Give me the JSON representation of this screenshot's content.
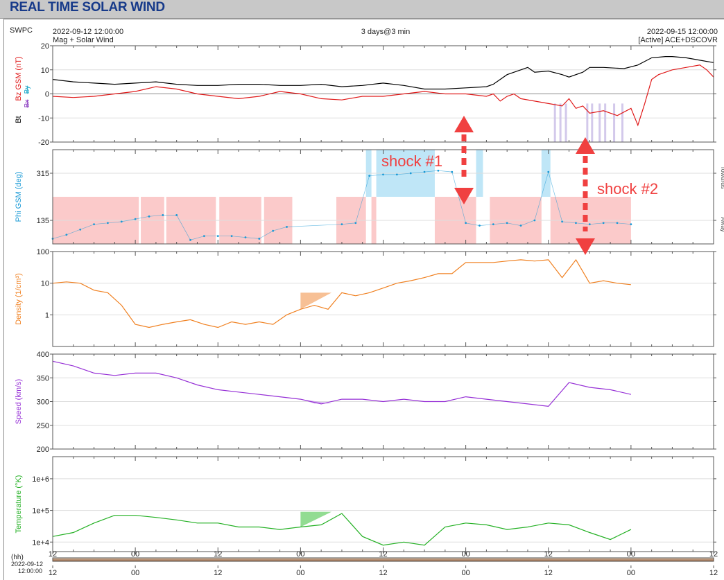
{
  "page": {
    "title": "REAL TIME SOLAR WIND"
  },
  "header": {
    "agency": "SWPC",
    "start_time": "2022-09-12 12:00:00",
    "subtitle": "Mag + Solar Wind",
    "range": "3 days@3 min",
    "end_time": "2022-09-15 12:00:00",
    "source": "[Active] ACE+DSCOVR"
  },
  "annotations": {
    "shock1": "shock #1",
    "shock2": "shock #2",
    "arrow_color": "#f04040"
  },
  "colors": {
    "bt": "#000000",
    "bz": "#e01a1a",
    "bx_by_fill": "#c8bce6",
    "phi": "#1a9ad6",
    "phi_toward": "#bfe6f7",
    "phi_away": "#fbcaca",
    "density": "#f08020",
    "speed": "#9630d6",
    "temperature": "#22b022",
    "grid": "#dddddd"
  },
  "chart_data": [
    {
      "type": "line",
      "panel": "mag",
      "ylabel_parts": [
        "Bt",
        "Bz GSM (nT)",
        "Bx",
        "By"
      ],
      "ylim": [
        -20,
        20
      ],
      "yticks": [
        "20",
        "10",
        "0",
        "-10",
        "-20"
      ],
      "grid": true,
      "series": [
        {
          "name": "Bt",
          "color": "#000000",
          "x": [
            0,
            3,
            6,
            9,
            12,
            15,
            18,
            21,
            24,
            27,
            30,
            33,
            36,
            39,
            42,
            45,
            48,
            51,
            54,
            57,
            60,
            63,
            64,
            66,
            68,
            69,
            70,
            72,
            74,
            75,
            77,
            78,
            80,
            83,
            85,
            87,
            89,
            90,
            92,
            94,
            96
          ],
          "y": [
            6,
            5,
            4.5,
            4,
            4.5,
            5,
            4,
            3.5,
            3.5,
            4,
            4,
            3.5,
            3.5,
            4,
            3,
            3.5,
            4.5,
            3.5,
            2,
            2,
            2.5,
            3,
            4,
            8,
            10,
            11,
            9,
            9.5,
            8,
            7,
            9,
            11,
            11,
            10.5,
            12,
            15,
            15.5,
            15.5,
            15,
            14,
            13
          ]
        },
        {
          "name": "Bz GSM",
          "color": "#e01a1a",
          "x": [
            0,
            3,
            6,
            9,
            12,
            15,
            18,
            21,
            24,
            27,
            30,
            33,
            36,
            39,
            42,
            45,
            48,
            51,
            54,
            57,
            60,
            63,
            64,
            65,
            66,
            67,
            68,
            70,
            72,
            74,
            75,
            76,
            77,
            78,
            80,
            82,
            84,
            85,
            86,
            87,
            88,
            90,
            92,
            94,
            95,
            96
          ],
          "y": [
            -1,
            -1.5,
            -1,
            0,
            1,
            3,
            2,
            0,
            -1,
            -2,
            -1,
            1,
            0,
            -2,
            -2.5,
            -1,
            -1,
            0,
            1,
            0,
            0,
            -1,
            0,
            -3,
            -1,
            0,
            -2,
            -3,
            -4,
            -5,
            -2,
            -6,
            -5,
            -8,
            -7,
            -9,
            -6,
            -13,
            -4,
            6,
            8,
            10,
            11,
            12,
            10,
            7
          ]
        }
      ]
    },
    {
      "type": "scatter",
      "panel": "phi",
      "ylabel": "Phi GSM (deg)",
      "ylim": [
        45,
        405
      ],
      "yticks": [
        "315",
        "135"
      ],
      "right_labels": [
        "Towards",
        "Away"
      ],
      "sectors": [
        {
          "from": 0,
          "to": 12.5,
          "kind": "away"
        },
        {
          "from": 12.8,
          "to": 16.2,
          "kind": "away"
        },
        {
          "from": 16.5,
          "to": 23.7,
          "kind": "away"
        },
        {
          "from": 24.2,
          "to": 30.3,
          "kind": "away"
        },
        {
          "from": 30.7,
          "to": 34.8,
          "kind": "away"
        },
        {
          "from": 41.2,
          "to": 45.5,
          "kind": "away"
        },
        {
          "from": 46.3,
          "to": 47.0,
          "kind": "away"
        },
        {
          "from": 45.5,
          "to": 46.3,
          "kind": "toward"
        },
        {
          "from": 47.0,
          "to": 55.5,
          "kind": "toward"
        },
        {
          "from": 55.5,
          "to": 61.5,
          "kind": "away"
        },
        {
          "from": 61.5,
          "to": 62.5,
          "kind": "toward"
        },
        {
          "from": 63.5,
          "to": 71.0,
          "kind": "away"
        },
        {
          "from": 71.0,
          "to": 72.3,
          "kind": "toward"
        },
        {
          "from": 72.3,
          "to": 84.0,
          "kind": "away"
        }
      ],
      "series": [
        {
          "name": "Phi GSM",
          "color": "#1a9ad6",
          "x": [
            0,
            2,
            4,
            6,
            8,
            10,
            12,
            14,
            16,
            18,
            20,
            22,
            24,
            26,
            28,
            30,
            32,
            34,
            42,
            44,
            46,
            48,
            50,
            52,
            54,
            56,
            58,
            60,
            62,
            64,
            66,
            68,
            70,
            72,
            74,
            76,
            78,
            80,
            82,
            84
          ],
          "y": [
            65,
            80,
            100,
            120,
            125,
            130,
            140,
            150,
            155,
            155,
            60,
            75,
            75,
            75,
            70,
            65,
            95,
            110,
            120,
            125,
            305,
            310,
            310,
            315,
            320,
            325,
            320,
            125,
            115,
            120,
            125,
            115,
            135,
            320,
            130,
            125,
            120,
            125,
            125,
            120
          ]
        }
      ]
    },
    {
      "type": "line",
      "panel": "density",
      "ylabel": "Density (1/cm³)",
      "log": true,
      "ylim": [
        0.1,
        100
      ],
      "yticks": [
        "100",
        "10",
        "1"
      ],
      "series": [
        {
          "name": "Density",
          "color": "#f08020",
          "x": [
            0,
            2,
            4,
            6,
            8,
            10,
            12,
            14,
            16,
            18,
            20,
            22,
            24,
            26,
            28,
            30,
            32,
            34,
            36,
            38,
            40,
            42,
            44,
            46,
            48,
            50,
            52,
            54,
            56,
            58,
            60,
            62,
            64,
            66,
            68,
            70,
            72,
            74,
            76,
            78,
            80,
            82,
            84
          ],
          "y": [
            10,
            11,
            10,
            6,
            5,
            2,
            0.5,
            0.4,
            0.5,
            0.6,
            0.7,
            0.5,
            0.4,
            0.6,
            0.5,
            0.6,
            0.5,
            1,
            1.5,
            2,
            1.5,
            5,
            4,
            5,
            7,
            10,
            12,
            15,
            20,
            20,
            45,
            45,
            45,
            50,
            55,
            50,
            55,
            15,
            55,
            10,
            12,
            10,
            9
          ]
        }
      ]
    },
    {
      "type": "line",
      "panel": "speed",
      "ylabel": "Speed (km/s)",
      "ylim": [
        200,
        400
      ],
      "yticks": [
        "400",
        "350",
        "300",
        "250",
        "200"
      ],
      "series": [
        {
          "name": "Speed",
          "color": "#9630d6",
          "x": [
            0,
            3,
            6,
            9,
            12,
            15,
            18,
            21,
            24,
            27,
            30,
            33,
            36,
            39,
            42,
            45,
            48,
            51,
            54,
            57,
            60,
            63,
            66,
            69,
            72,
            75,
            78,
            81,
            84
          ],
          "y": [
            385,
            375,
            360,
            355,
            360,
            360,
            350,
            335,
            325,
            320,
            315,
            310,
            305,
            295,
            305,
            305,
            300,
            305,
            300,
            300,
            310,
            305,
            300,
            295,
            290,
            340,
            330,
            325,
            315
          ]
        }
      ]
    },
    {
      "type": "line",
      "panel": "temperature",
      "ylabel": "Temperature (°K)",
      "log": true,
      "ylim": [
        5000,
        5000000
      ],
      "yticks": [
        "1e+6",
        "1e+5",
        "1e+4"
      ],
      "series": [
        {
          "name": "Temperature",
          "color": "#22b022",
          "x": [
            0,
            3,
            6,
            9,
            12,
            15,
            18,
            21,
            24,
            27,
            30,
            33,
            36,
            39,
            42,
            45,
            48,
            51,
            54,
            57,
            60,
            63,
            66,
            69,
            72,
            75,
            78,
            81,
            84
          ],
          "y": [
            15000,
            20000,
            40000,
            70000,
            70000,
            60000,
            50000,
            40000,
            40000,
            30000,
            30000,
            25000,
            30000,
            35000,
            80000,
            15000,
            8000,
            10000,
            8000,
            30000,
            40000,
            35000,
            25000,
            30000,
            40000,
            35000,
            20000,
            12000,
            25000
          ]
        }
      ]
    },
    {
      "type": "axis",
      "panel": "time",
      "xlim": [
        0,
        96
      ],
      "unit_label": "(hh)",
      "start_label": [
        "2022-09-12",
        "12:00:00"
      ],
      "tick_positions": [
        0,
        12,
        24,
        36,
        48,
        60,
        72,
        84,
        96
      ],
      "tick_labels": [
        "12",
        "00",
        "12",
        "00",
        "12",
        "00",
        "12",
        "00",
        "12"
      ]
    }
  ]
}
